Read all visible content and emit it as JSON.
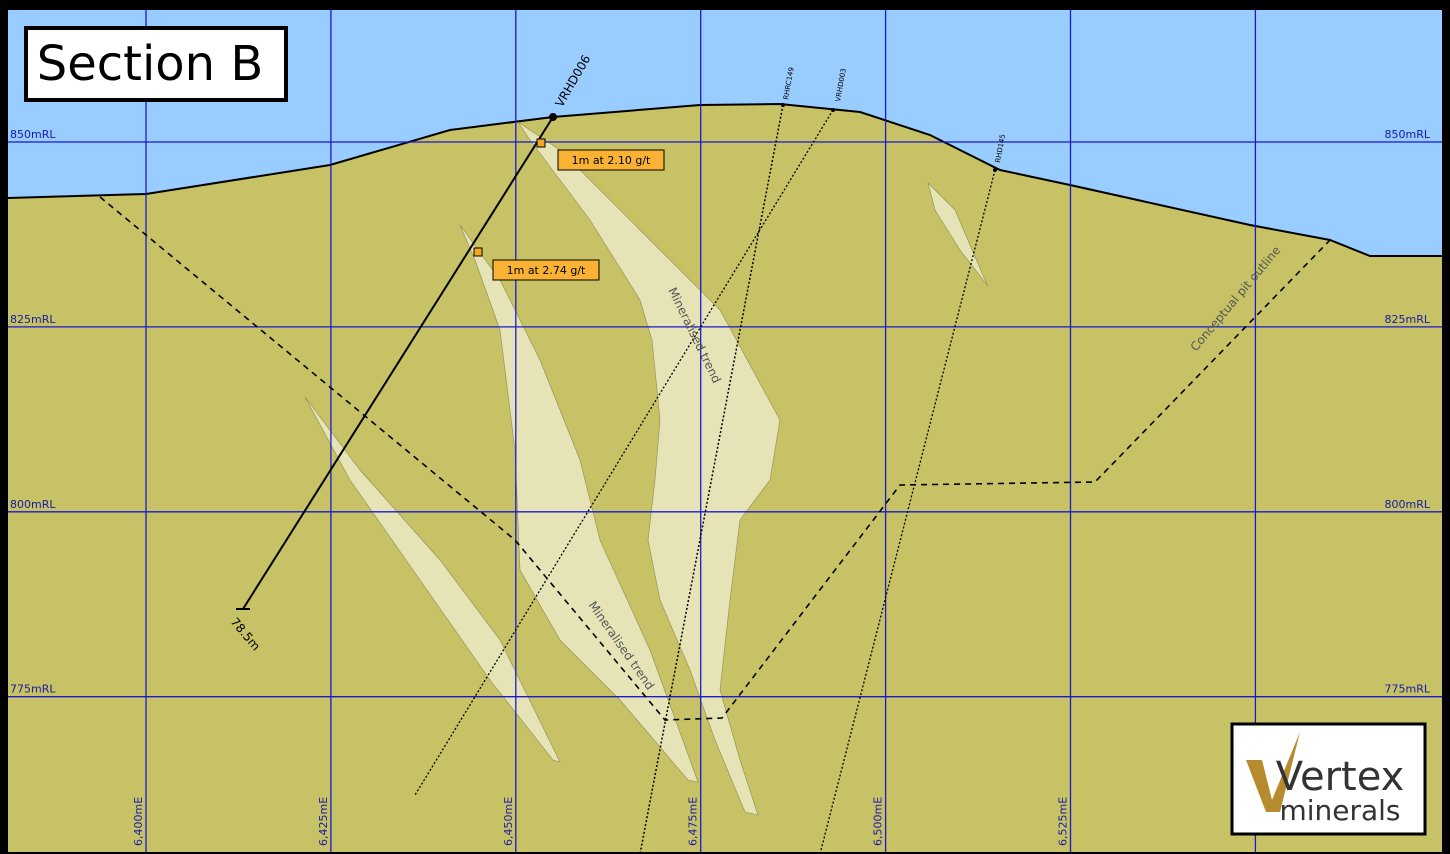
{
  "title": "Section B",
  "rl_labels": [
    "850mRL",
    "825mRL",
    "800mRL",
    "775mRL"
  ],
  "easting_labels": [
    "6,400mE",
    "6,425mE",
    "6,450mE",
    "6,475mE",
    "6,500mE",
    "6,525mE"
  ],
  "drillholes": [
    {
      "name": "VRHD006",
      "depth_label": "78.5m"
    },
    {
      "name": "RHRC149"
    },
    {
      "name": "VRHD003"
    },
    {
      "name": "RHD145"
    }
  ],
  "intercepts": [
    "1m at 2.10 g/t",
    "1m at 2.74 g/t"
  ],
  "annotations": [
    "Mineralised trend",
    "Mineralised trend",
    "Conceptual pit outline"
  ],
  "logo": {
    "line1": "Vertex",
    "line2": "minerals"
  }
}
